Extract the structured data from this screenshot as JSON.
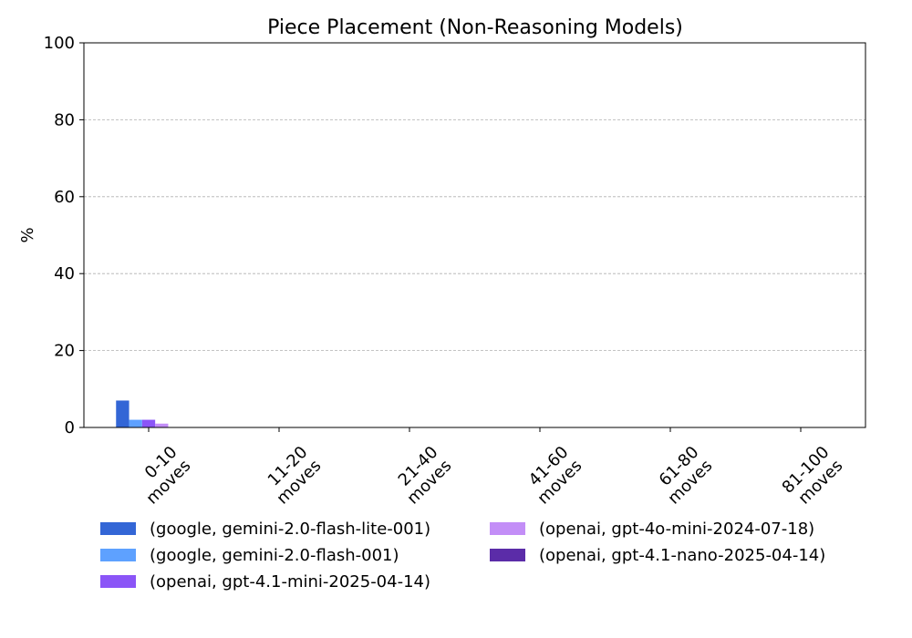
{
  "chart_data": {
    "type": "bar",
    "title": "Piece Placement (Non-Reasoning Models)",
    "xlabel": "",
    "ylabel": "%",
    "ylim": [
      0,
      100
    ],
    "yticks": [
      0,
      20,
      40,
      60,
      80,
      100
    ],
    "grid": "y dashed",
    "categories": [
      "0-10\nmoves",
      "11-20\nmoves",
      "21-40\nmoves",
      "41-60\nmoves",
      "61-80\nmoves",
      "81-100\nmoves"
    ],
    "series": [
      {
        "name": "(google, gemini-2.0-flash-lite-001)",
        "color": "#3366d6",
        "values": [
          7,
          0,
          0,
          0,
          0,
          0
        ]
      },
      {
        "name": "(google, gemini-2.0-flash-001)",
        "color": "#5ea1ff",
        "values": [
          2,
          0,
          0,
          0,
          0,
          0
        ]
      },
      {
        "name": "(openai, gpt-4.1-mini-2025-04-14)",
        "color": "#8b55f7",
        "values": [
          2,
          0,
          0,
          0,
          0,
          0
        ]
      },
      {
        "name": "(openai, gpt-4o-mini-2024-07-18)",
        "color": "#c38ef7",
        "values": [
          1,
          0,
          0,
          0,
          0,
          0
        ]
      },
      {
        "name": "(openai, gpt-4.1-nano-2025-04-14)",
        "color": "#5b2ca8",
        "values": [
          0,
          0,
          0,
          0,
          0,
          0
        ]
      }
    ],
    "legend_position": "bottom"
  }
}
